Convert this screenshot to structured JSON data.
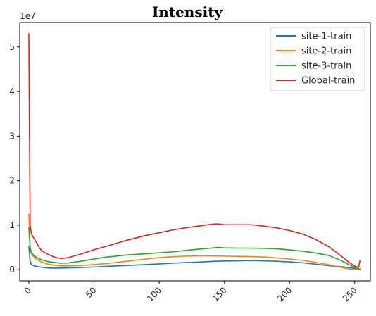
{
  "chart_data": {
    "type": "line",
    "title": "Intensity",
    "xlabel": "",
    "ylabel": "",
    "y_multiplier_label": "1e7",
    "xlim": [
      -7,
      262
    ],
    "ylim": [
      -2500000,
      55500000
    ],
    "xticks": [
      0,
      50,
      100,
      150,
      200,
      250
    ],
    "xtick_rotation": 45,
    "yticks": [
      0,
      10000000,
      20000000,
      30000000,
      40000000,
      50000000
    ],
    "ytick_labels": [
      "0",
      "1",
      "2",
      "3",
      "4",
      "5"
    ],
    "grid": false,
    "legend_position": "top-right",
    "series": [
      {
        "name": "site-1-train",
        "color": "#1f77b4",
        "x": [
          0,
          1,
          2,
          5,
          10,
          15,
          20,
          25,
          30,
          40,
          50,
          60,
          75,
          90,
          100,
          110,
          120,
          130,
          140,
          150,
          160,
          170,
          180,
          190,
          200,
          210,
          220,
          230,
          240,
          245,
          250,
          253,
          254
        ],
        "y": [
          5200000,
          2000000,
          1100000,
          800000,
          550000,
          400000,
          350000,
          380000,
          420000,
          500000,
          600000,
          750000,
          950000,
          1150000,
          1300000,
          1450000,
          1600000,
          1700000,
          1850000,
          1950000,
          2000000,
          2050000,
          2000000,
          1900000,
          1750000,
          1550000,
          1250000,
          900000,
          650000,
          500000,
          300000,
          150000,
          100000
        ]
      },
      {
        "name": "site-2-train",
        "color": "#ff7f0e",
        "x": [
          0,
          1,
          2,
          5,
          10,
          15,
          20,
          25,
          30,
          40,
          50,
          60,
          75,
          90,
          100,
          110,
          120,
          130,
          140,
          150,
          160,
          170,
          180,
          190,
          200,
          210,
          220,
          230,
          240,
          245,
          250,
          253,
          254
        ],
        "y": [
          12500000,
          5000000,
          3500000,
          2500000,
          1700000,
          1200000,
          1000000,
          850000,
          850000,
          950000,
          1150000,
          1400000,
          1900000,
          2400000,
          2700000,
          2900000,
          3050000,
          3100000,
          3100000,
          3050000,
          3000000,
          2950000,
          2850000,
          2650000,
          2400000,
          2100000,
          1650000,
          1100000,
          500000,
          200000,
          50000,
          0,
          0
        ]
      },
      {
        "name": "site-3-train",
        "color": "#2ca02c",
        "x": [
          0,
          1,
          2,
          5,
          10,
          15,
          20,
          25,
          30,
          40,
          50,
          60,
          75,
          90,
          100,
          110,
          120,
          130,
          140,
          145,
          150,
          160,
          170,
          180,
          190,
          200,
          210,
          220,
          230,
          240,
          245,
          250,
          253,
          254
        ],
        "y": [
          9500000,
          5000000,
          3800000,
          2900000,
          2200000,
          1800000,
          1600000,
          1450000,
          1500000,
          1900000,
          2400000,
          2850000,
          3300000,
          3600000,
          3800000,
          4000000,
          4300000,
          4600000,
          4850000,
          5000000,
          4900000,
          4850000,
          4850000,
          4800000,
          4700000,
          4450000,
          4150000,
          3750000,
          3200000,
          2000000,
          1200000,
          500000,
          150000,
          150000
        ]
      },
      {
        "name": "Global-train",
        "color": "#d62728",
        "x": [
          0,
          0.5,
          1,
          2,
          5,
          8,
          10,
          15,
          20,
          25,
          30,
          40,
          50,
          60,
          75,
          90,
          100,
          110,
          120,
          130,
          140,
          145,
          150,
          160,
          170,
          175,
          180,
          190,
          200,
          210,
          220,
          230,
          240,
          245,
          250,
          253,
          254
        ],
        "y": [
          53000000,
          30000000,
          10000000,
          8000000,
          6500000,
          5000000,
          4200000,
          3400000,
          2800000,
          2500000,
          2700000,
          3500000,
          4500000,
          5300000,
          6600000,
          7700000,
          8300000,
          8900000,
          9400000,
          9800000,
          10200000,
          10300000,
          10100000,
          10100000,
          10100000,
          10000000,
          9800000,
          9400000,
          8800000,
          8000000,
          6800000,
          5200000,
          3000000,
          1800000,
          800000,
          500000,
          2000000
        ]
      }
    ]
  }
}
